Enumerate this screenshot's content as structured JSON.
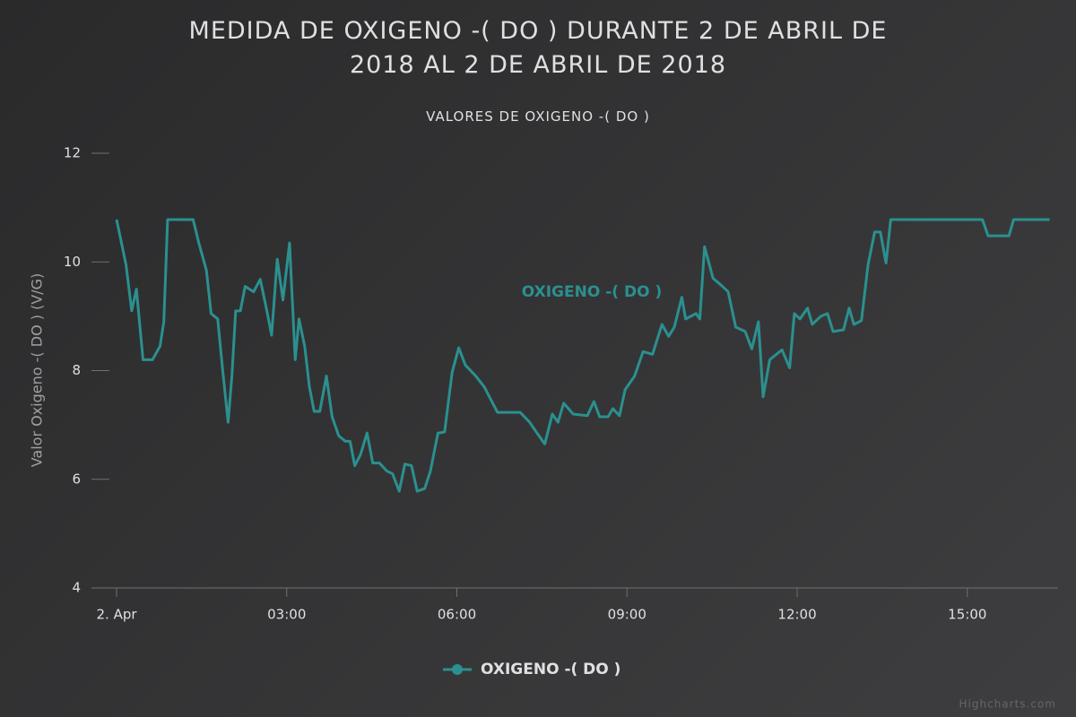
{
  "chart_data": {
    "type": "line",
    "title": "MEDIDA DE OXIGENO -( DO ) DURANTE 2 DE ABRIL DE 2018 AL 2 DE ABRIL DE 2018",
    "subtitle": "VALORES DE OXIGENO -( DO )",
    "y_label": "Valor Oxigeno -( DO ) (V/G)",
    "credits": "Highcharts.com",
    "x": [
      "00:00",
      "00:10",
      "00:16",
      "00:21",
      "00:28",
      "00:38",
      "00:46",
      "00:50",
      "00:54",
      "01:21",
      "01:27",
      "01:35",
      "01:40",
      "01:47",
      "01:52",
      "01:58",
      "02:02",
      "02:06",
      "02:11",
      "02:16",
      "02:25",
      "02:32",
      "02:39",
      "02:44",
      "02:50",
      "02:56",
      "03:03",
      "03:09",
      "03:13",
      "03:19",
      "03:24",
      "03:29",
      "03:35",
      "03:42",
      "03:48",
      "03:55",
      "04:02",
      "04:07",
      "04:12",
      "04:18",
      "04:25",
      "04:31",
      "04:38",
      "04:46",
      "04:52",
      "04:59",
      "05:05",
      "05:12",
      "05:18",
      "05:26",
      "05:32",
      "05:40",
      "05:47",
      "05:55",
      "06:02",
      "06:09",
      "06:20",
      "06:29",
      "06:43",
      "07:07",
      "07:17",
      "07:26",
      "07:33",
      "07:41",
      "07:47",
      "07:53",
      "08:03",
      "08:18",
      "08:25",
      "08:31",
      "08:40",
      "08:45",
      "08:52",
      "08:58",
      "09:08",
      "09:17",
      "09:27",
      "09:37",
      "09:44",
      "09:50",
      "09:58",
      "10:02",
      "10:13",
      "10:17",
      "10:22",
      "10:31",
      "10:41",
      "10:47",
      "10:55",
      "11:05",
      "11:12",
      "11:19",
      "11:24",
      "11:31",
      "11:38",
      "11:44",
      "11:52",
      "11:57",
      "12:03",
      "12:11",
      "12:16",
      "12:25",
      "12:32",
      "12:38",
      "12:49",
      "12:55",
      "13:00",
      "13:08",
      "13:15",
      "13:22",
      "13:28",
      "13:34",
      "13:39",
      "15:16",
      "15:22",
      "15:44",
      "15:49",
      "16:27"
    ],
    "series": [
      {
        "name": "OXIGENO -( DO )",
        "color": "#2b908f",
        "values": [
          10.78,
          9.95,
          9.1,
          9.5,
          8.2,
          8.2,
          8.45,
          8.9,
          10.78,
          10.78,
          10.35,
          9.85,
          9.05,
          8.95,
          8.05,
          7.05,
          7.9,
          9.1,
          9.1,
          9.55,
          9.45,
          9.68,
          9.1,
          8.65,
          10.05,
          9.3,
          10.35,
          8.2,
          8.95,
          8.45,
          7.7,
          7.25,
          7.25,
          7.9,
          7.15,
          6.8,
          6.7,
          6.7,
          6.25,
          6.45,
          6.85,
          6.3,
          6.3,
          6.15,
          6.1,
          5.78,
          6.28,
          6.25,
          5.78,
          5.83,
          6.15,
          6.85,
          6.87,
          7.97,
          8.42,
          8.1,
          7.9,
          7.7,
          7.23,
          7.23,
          7.05,
          6.82,
          6.65,
          7.2,
          7.05,
          7.4,
          7.2,
          7.17,
          7.43,
          7.15,
          7.15,
          7.3,
          7.17,
          7.65,
          7.9,
          8.35,
          8.3,
          8.85,
          8.63,
          8.8,
          9.35,
          8.95,
          9.05,
          8.95,
          10.28,
          9.7,
          9.55,
          9.45,
          8.8,
          8.72,
          8.4,
          8.9,
          7.52,
          8.2,
          8.3,
          8.38,
          8.05,
          9.05,
          8.95,
          9.15,
          8.85,
          9.0,
          9.05,
          8.72,
          8.75,
          9.15,
          8.85,
          8.92,
          9.95,
          10.55,
          10.55,
          9.98,
          10.78,
          10.78,
          10.48,
          10.48,
          10.78,
          10.78
        ]
      }
    ],
    "xlim": [
      "00:00",
      "16:36"
    ],
    "xticks": [
      {
        "value": "00:00",
        "label": "2. Apr"
      },
      "03:00",
      "06:00",
      "09:00",
      "12:00",
      "15:00"
    ],
    "ylim": [
      4,
      12
    ],
    "yticks": [
      4,
      6,
      8,
      10,
      12
    ],
    "grid": false,
    "legend": "bottom"
  }
}
